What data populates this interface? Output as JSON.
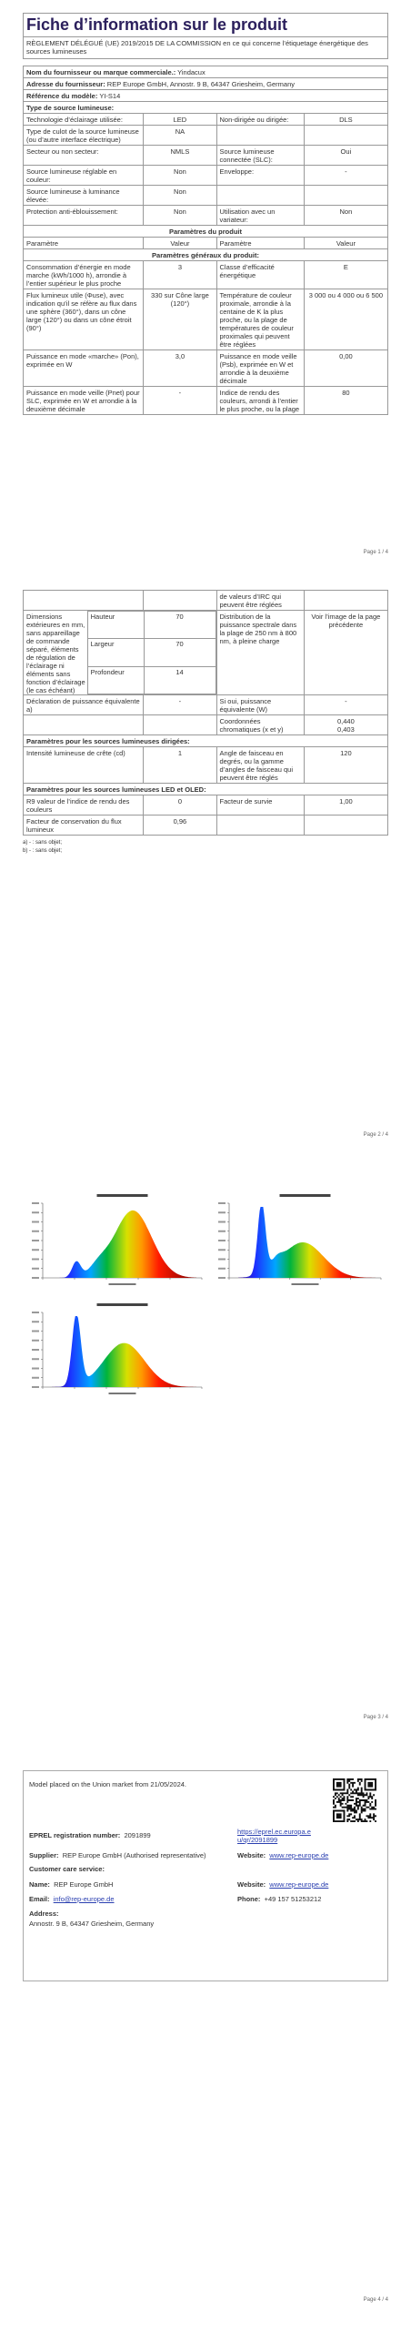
{
  "pages": [
    {
      "title": "Fiche d’information sur le produit",
      "regulation": "RÈGLEMENT DÉLÉGUÉ (UE) 2019/2015 DE LA COMMISSION en ce qui concerne l’étiquetage énergétique des sources lumineuses",
      "info": [
        [
          "Nom du fournisseur ou marque commerciale.:",
          "Yindacux"
        ],
        [
          "Adresse du fournisseur:",
          "REP Europe GmbH, Annostr. 9 B, 64347 Griesheim, Germany"
        ],
        [
          "Référence du modèle:",
          "YI-S14"
        ],
        [
          "Type de source lumineuse:"
        ]
      ],
      "table": {
        "rows": [
          [
            "Technologie d’éclairage utilisée:",
            "LED",
            "Non-dirigée ou dirigée:",
            "DLS"
          ],
          [
            "Type de culot de la source lumineuse (ou d’autre interface électrique)",
            "NA",
            null,
            null
          ],
          [
            "Secteur ou non secteur:",
            "NMLS",
            "Source lumineuse connectée (SLC):",
            "Oui"
          ],
          [
            "Source lumineuse réglable en couleur:",
            "Non",
            "Enveloppe:",
            "-"
          ],
          [
            "Source lumineuse à luminance élevée:",
            "Non",
            null,
            null
          ],
          [
            "Protection anti-éblouissement:",
            "Non",
            "Utilisation avec un variateur:",
            "Non"
          ],
          "Paramètres du produit",
          [
            "Paramètre",
            "Valeur",
            "Paramètre",
            "Valeur"
          ],
          "Paramètres généraux du produit:",
          [
            "Consommation d’énergie en mode marche (kWh/1000 h), arrondie à l’entier supérieur le plus proche",
            "3",
            "Classe d’efficacité énergétique",
            "E"
          ],
          [
            "Flux lumineux utile (Φuse), avec indication qu’il se réfère au flux dans une sphère (360°), dans un cône large (120°) ou dans un cône étroit (90°)",
            "330 sur Cône large (120°)",
            "Température de couleur proximale, arrondie à la centaine de K la plus proche, ou la plage de températures de couleur proximales qui peuvent être réglées",
            "3 000 ou 4 000 ou 6 500"
          ],
          [
            "Puissance en mode «marche» (Pon), exprimée en W",
            "3,0",
            "Puissance en mode veille (Psb), exprimée en W et arrondie à la deuxième décimale",
            "0,00"
          ],
          [
            "Puissance en mode veille (Pnet) pour SLC, exprimée en W et arrondie à la deuxième décimale",
            "-",
            "Indice de rendu des couleurs, arrondi à l’entier le plus proche, ou la plage",
            "80"
          ]
        ]
      },
      "page_number": "Page 1 / 4"
    },
    {
      "table": {
        "rows": [
          [
            null,
            null,
            "de valeurs d’IRC qui peuvent être réglées",
            null
          ],
          {
            "label": "Dimensions extérieures en mm, sans appareillage de commande séparé, éléments de régulation de l’éclairage ni éléments sans fonction d’éclairage (le cas échéant)",
            "dimensions": [
              [
                "Hauteur",
                "70"
              ],
              [
                "Largeur",
                "70"
              ],
              [
                "Profondeur",
                "14"
              ]
            ],
            "parameter": "Distribution de la puissance spectrale dans la plage de 250 nm à 800 nm, à pleine charge",
            "value": "Voir l’image de la page précédente"
          },
          [
            "Déclaration de puissance équivalente a)",
            "-",
            "Si oui, puissance équivalente (W)",
            "-"
          ],
          [
            null,
            null,
            "Coordonnées chromatiques (x et y)",
            "0,440\n0,403"
          ],
          "Paramètres pour les sources lumineuses dirigées:",
          [
            "Intensité lumineuse de crête (cd)",
            "1",
            "Angle de faisceau en degrés, ou la gamme d’angles de faisceau qui peuvent être réglés",
            "120"
          ],
          "Paramètres pour les sources lumineuses LED et OLED:",
          [
            "R9 valeur de l’indice de rendu des couleurs",
            "0",
            "Facteur de survie",
            "1,00"
          ],
          [
            "Facteur de conservation du flux lumineux",
            "0,96",
            null,
            null
          ]
        ]
      },
      "notes": [
        "a) - : sans objet;",
        "b) - : sans objet;"
      ],
      "page_number": "Page 2 / 4"
    },
    {
      "page_number": "Page 3 / 4"
    },
    {
      "registration": {
        "placed": "Model placed on the Union market from 21/05/2024.",
        "eprel": {
          "label": "EPREL registration number:",
          "number": "2091899",
          "link": "https://eprel.ec.europa.eu/qr/2091899"
        },
        "supplier": {
          "label": "Supplier:",
          "value": "REP Europe GmbH (Authorised representative)"
        },
        "website": {
          "label": "Website:",
          "value": "www.rep-europe.de"
        },
        "customer_care": "Customer care service:",
        "name": {
          "label": "Name:",
          "value": "REP Europe GmbH"
        },
        "website_2": {
          "label": "Website:",
          "value": "www.rep-europe.de"
        },
        "email": {
          "label": "Email:",
          "value": "info@rep-europe.de"
        },
        "phone": {
          "label": "Phone:",
          "value": "+49 157 51253212"
        },
        "address": {
          "label": "Address:",
          "value": "Annostr. 9 B, 64347 Griesheim, Germany"
        }
      },
      "page_number": "Page 4 / 4"
    }
  ]
}
